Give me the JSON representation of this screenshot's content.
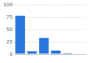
{
  "chart_data": {
    "type": "bar",
    "categories": [
      null,
      null,
      null,
      null,
      null,
      null
    ],
    "values": [
      78,
      6,
      33,
      7,
      2,
      1
    ],
    "color": "#2876dd",
    "ylim": [
      0,
      100
    ],
    "yticks": [
      0,
      25,
      50,
      75,
      100
    ],
    "grid": true,
    "tick_labels": "y"
  }
}
